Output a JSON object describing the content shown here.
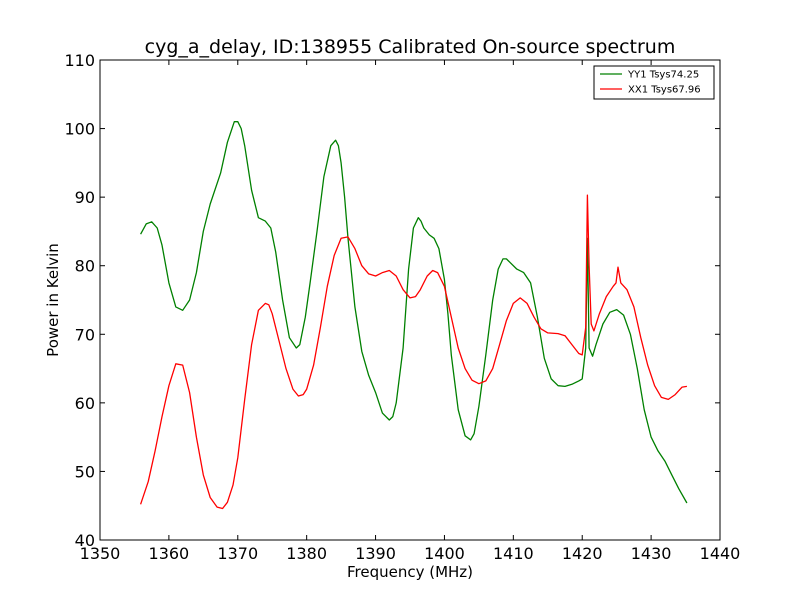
{
  "chart_data": {
    "type": "line",
    "title": "cyg_a_delay, ID:138955 Calibrated On-source spectrum",
    "xlabel": "Frequency (MHz)",
    "ylabel": "Power in Kelvin",
    "xlim": [
      1350,
      1440
    ],
    "ylim": [
      40,
      110
    ],
    "xticks": [
      1350,
      1360,
      1370,
      1380,
      1390,
      1400,
      1410,
      1420,
      1430,
      1440
    ],
    "yticks": [
      40,
      50,
      60,
      70,
      80,
      90,
      100,
      110
    ],
    "grid": false,
    "legend_position": "top-right",
    "series": [
      {
        "name": "YY1 Tsys74.25",
        "color": "#008000",
        "x": [
          1355.9,
          1356.7,
          1357.5,
          1358.3,
          1359.0,
          1360.0,
          1361.0,
          1362.0,
          1363.0,
          1364.0,
          1365.0,
          1366.0,
          1367.5,
          1368.5,
          1369.5,
          1370.0,
          1370.5,
          1371.0,
          1372.0,
          1373.0,
          1374.0,
          1374.8,
          1375.5,
          1376.5,
          1377.5,
          1378.5,
          1379.0,
          1379.8,
          1380.5,
          1381.5,
          1382.5,
          1383.5,
          1384.2,
          1384.6,
          1385.0,
          1385.5,
          1386.0,
          1387.0,
          1388.0,
          1389.0,
          1390.0,
          1391.0,
          1392.0,
          1392.5,
          1393.0,
          1394.0,
          1394.8,
          1395.5,
          1396.2,
          1396.6,
          1397.0,
          1397.8,
          1398.5,
          1399.2,
          1400.0,
          1400.5,
          1401.0,
          1402.0,
          1403.0,
          1403.8,
          1404.3,
          1405.0,
          1406.0,
          1407.0,
          1407.8,
          1408.5,
          1409.0,
          1409.5,
          1410.5,
          1411.5,
          1412.5,
          1413.5,
          1414.5,
          1415.5,
          1416.5,
          1417.5,
          1418.5,
          1419.5,
          1420.0,
          1420.5,
          1420.75,
          1421.0,
          1421.5,
          1422.0,
          1423.0,
          1424.0,
          1425.0,
          1426.0,
          1427.0,
          1428.0,
          1429.0,
          1430.0,
          1431.0,
          1432.0,
          1433.0,
          1434.0,
          1435.2
        ],
        "y": [
          84.6,
          86.1,
          86.4,
          85.5,
          83.0,
          77.5,
          74.0,
          73.5,
          75.0,
          79.0,
          85.0,
          89.0,
          93.5,
          98.0,
          101.0,
          101.0,
          100.0,
          97.5,
          91.0,
          87.0,
          86.5,
          85.5,
          82.0,
          75.0,
          69.5,
          68.0,
          68.5,
          72.5,
          77.5,
          85.0,
          93.0,
          97.5,
          98.3,
          97.5,
          95.0,
          90.0,
          84.0,
          74.0,
          67.5,
          64.0,
          61.5,
          58.5,
          57.5,
          58.0,
          60.0,
          68.0,
          79.5,
          85.5,
          87.0,
          86.5,
          85.5,
          84.5,
          84.0,
          82.5,
          78.0,
          73.0,
          67.0,
          59.0,
          55.2,
          54.6,
          55.5,
          59.5,
          67.0,
          75.0,
          79.5,
          81.0,
          81.0,
          80.5,
          79.5,
          79.0,
          77.5,
          72.5,
          66.5,
          63.5,
          62.5,
          62.4,
          62.7,
          63.2,
          63.5,
          68.0,
          84.0,
          68.0,
          66.8,
          68.5,
          71.5,
          73.2,
          73.6,
          72.8,
          70.0,
          65.0,
          59.0,
          55.0,
          53.0,
          51.5,
          49.5,
          47.5,
          45.4
        ]
      },
      {
        "name": "XX1 Tsys67.96",
        "color": "#ff0000",
        "x": [
          1355.9,
          1357.0,
          1358.0,
          1359.0,
          1360.0,
          1361.0,
          1362.0,
          1363.0,
          1364.0,
          1365.0,
          1366.0,
          1367.0,
          1367.8,
          1368.5,
          1369.3,
          1370.0,
          1371.0,
          1372.0,
          1373.0,
          1374.0,
          1374.5,
          1375.0,
          1376.0,
          1377.0,
          1378.0,
          1378.8,
          1379.5,
          1380.0,
          1381.0,
          1382.0,
          1383.0,
          1384.0,
          1385.0,
          1386.0,
          1387.0,
          1388.0,
          1389.0,
          1390.0,
          1391.0,
          1392.0,
          1393.0,
          1394.0,
          1395.0,
          1395.8,
          1396.5,
          1397.5,
          1398.3,
          1399.0,
          1400.0,
          1401.0,
          1402.0,
          1403.0,
          1404.0,
          1405.0,
          1406.0,
          1407.0,
          1408.0,
          1409.0,
          1410.0,
          1411.0,
          1412.0,
          1413.0,
          1414.0,
          1415.0,
          1416.5,
          1417.5,
          1418.5,
          1419.5,
          1420.0,
          1420.5,
          1420.75,
          1421.0,
          1421.3,
          1421.7,
          1422.5,
          1423.5,
          1424.5,
          1424.9,
          1425.2,
          1425.6,
          1426.5,
          1427.5,
          1428.5,
          1429.5,
          1430.5,
          1431.5,
          1432.5,
          1433.5,
          1434.5,
          1435.2
        ],
        "y": [
          45.2,
          48.5,
          53.0,
          58.0,
          62.5,
          65.7,
          65.5,
          61.5,
          55.0,
          49.5,
          46.2,
          44.8,
          44.6,
          45.5,
          48.0,
          52.0,
          60.5,
          68.5,
          73.5,
          74.5,
          74.3,
          73.0,
          69.0,
          65.0,
          62.0,
          61.0,
          61.2,
          62.0,
          65.5,
          71.0,
          77.0,
          81.5,
          84.0,
          84.2,
          82.5,
          80.0,
          78.8,
          78.5,
          79.0,
          79.3,
          78.5,
          76.5,
          75.3,
          75.5,
          76.5,
          78.5,
          79.3,
          79.0,
          77.0,
          72.5,
          68.0,
          65.0,
          63.3,
          62.8,
          63.2,
          65.0,
          68.5,
          72.0,
          74.5,
          75.3,
          74.5,
          72.5,
          70.8,
          70.2,
          70.1,
          69.8,
          68.5,
          67.2,
          67.0,
          71.0,
          90.3,
          80.0,
          71.5,
          70.5,
          73.0,
          75.5,
          77.0,
          77.5,
          79.8,
          77.5,
          76.5,
          74.0,
          69.5,
          65.5,
          62.5,
          60.8,
          60.5,
          61.2,
          62.3,
          62.4
        ]
      }
    ]
  }
}
